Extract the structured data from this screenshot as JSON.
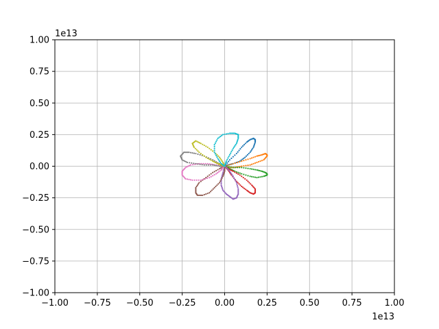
{
  "chart_data": {
    "type": "scatter",
    "title": "",
    "xlabel": "",
    "ylabel": "",
    "xlim": [
      -1.0,
      1.0
    ],
    "ylim": [
      -1.0,
      1.0
    ],
    "x_ticks": [
      "−1.00",
      "−0.75",
      "−0.50",
      "−0.25",
      "0.00",
      "0.25",
      "0.50",
      "0.75",
      "1.00"
    ],
    "y_ticks": [
      "−1.00",
      "−0.75",
      "−0.50",
      "−0.25",
      "0.00",
      "0.25",
      "0.50",
      "0.75",
      "1.00"
    ],
    "x_tick_values": [
      -1.0,
      -0.75,
      -0.5,
      -0.25,
      0.0,
      0.25,
      0.5,
      0.75,
      1.0
    ],
    "y_tick_values": [
      -1.0,
      -0.75,
      -0.5,
      -0.25,
      0.0,
      0.25,
      0.5,
      0.75,
      1.0
    ],
    "x_offset_label": "1e13",
    "y_offset_label": "1e13",
    "grid": true,
    "legend": "none",
    "marker": "dot",
    "series": [
      {
        "color": "#1f77b4",
        "petal_angle_deg": 45,
        "x": [
          0.0,
          0.03,
          0.07,
          0.1,
          0.13,
          0.15,
          0.17,
          0.18,
          0.18,
          0.17,
          0.15,
          0.12,
          0.09,
          0.05,
          0.02,
          0.0
        ],
        "y": [
          0.0,
          0.05,
          0.1,
          0.15,
          0.19,
          0.21,
          0.22,
          0.21,
          0.19,
          0.15,
          0.11,
          0.07,
          0.04,
          0.02,
          0.01,
          0.0
        ]
      },
      {
        "color": "#ff7f0e",
        "petal_angle_deg": 15,
        "x": [
          0.0,
          0.05,
          0.1,
          0.15,
          0.19,
          0.22,
          0.24,
          0.25,
          0.25,
          0.23,
          0.19,
          0.15,
          0.1,
          0.06,
          0.03,
          0.0
        ],
        "y": [
          0.0,
          0.02,
          0.04,
          0.06,
          0.08,
          0.09,
          0.1,
          0.09,
          0.08,
          0.05,
          0.03,
          0.01,
          0.0,
          -0.01,
          -0.01,
          0.0
        ]
      },
      {
        "color": "#2ca02c",
        "petal_angle_deg": -15,
        "x": [
          0.0,
          0.05,
          0.1,
          0.15,
          0.19,
          0.22,
          0.24,
          0.25,
          0.25,
          0.23,
          0.19,
          0.15,
          0.1,
          0.06,
          0.03,
          0.0
        ],
        "y": [
          0.0,
          -0.01,
          -0.01,
          -0.02,
          -0.03,
          -0.04,
          -0.05,
          -0.06,
          -0.07,
          -0.08,
          -0.09,
          -0.08,
          -0.06,
          -0.04,
          -0.02,
          0.0
        ]
      },
      {
        "color": "#d62728",
        "petal_angle_deg": -45,
        "x": [
          0.0,
          0.02,
          0.04,
          0.07,
          0.1,
          0.13,
          0.15,
          0.17,
          0.18,
          0.18,
          0.16,
          0.13,
          0.09,
          0.05,
          0.02,
          0.0
        ],
        "y": [
          0.0,
          -0.03,
          -0.07,
          -0.12,
          -0.16,
          -0.19,
          -0.21,
          -0.22,
          -0.21,
          -0.18,
          -0.15,
          -0.11,
          -0.07,
          -0.04,
          -0.02,
          0.0
        ]
      },
      {
        "color": "#9467bd",
        "petal_angle_deg": -75,
        "x": [
          0.0,
          -0.01,
          -0.02,
          -0.02,
          -0.01,
          0.01,
          0.03,
          0.05,
          0.07,
          0.08,
          0.08,
          0.07,
          0.05,
          0.03,
          0.01,
          0.0
        ],
        "y": [
          0.0,
          -0.05,
          -0.1,
          -0.15,
          -0.19,
          -0.22,
          -0.24,
          -0.26,
          -0.25,
          -0.22,
          -0.18,
          -0.13,
          -0.08,
          -0.04,
          -0.01,
          0.0
        ]
      },
      {
        "color": "#8c564b",
        "petal_angle_deg": -120,
        "x": [
          0.0,
          -0.03,
          -0.07,
          -0.11,
          -0.15,
          -0.17,
          -0.17,
          -0.16,
          -0.13,
          -0.09,
          -0.06,
          -0.03,
          -0.01,
          0.0,
          0.0,
          0.0
        ],
        "y": [
          0.0,
          -0.02,
          -0.05,
          -0.09,
          -0.13,
          -0.17,
          -0.21,
          -0.23,
          -0.23,
          -0.21,
          -0.17,
          -0.13,
          -0.08,
          -0.04,
          -0.01,
          0.0
        ]
      },
      {
        "color": "#e377c2",
        "petal_angle_deg": -170,
        "x": [
          0.0,
          -0.05,
          -0.1,
          -0.15,
          -0.2,
          -0.23,
          -0.25,
          -0.25,
          -0.23,
          -0.19,
          -0.14,
          -0.09,
          -0.05,
          -0.02,
          -0.01,
          0.0
        ],
        "y": [
          0.0,
          0.01,
          0.02,
          0.02,
          0.01,
          -0.01,
          -0.04,
          -0.07,
          -0.1,
          -0.11,
          -0.11,
          -0.09,
          -0.06,
          -0.03,
          -0.01,
          0.0
        ]
      },
      {
        "color": "#7f7f7f",
        "petal_angle_deg": 165,
        "x": [
          0.0,
          -0.03,
          -0.07,
          -0.12,
          -0.17,
          -0.21,
          -0.24,
          -0.26,
          -0.25,
          -0.22,
          -0.17,
          -0.12,
          -0.07,
          -0.03,
          -0.01,
          0.0
        ],
        "y": [
          0.0,
          0.02,
          0.05,
          0.08,
          0.1,
          0.11,
          0.11,
          0.08,
          0.05,
          0.03,
          0.02,
          0.01,
          0.01,
          0.0,
          0.0,
          0.0
        ]
      },
      {
        "color": "#bcbd22",
        "petal_angle_deg": 120,
        "x": [
          0.0,
          -0.01,
          -0.03,
          -0.06,
          -0.1,
          -0.14,
          -0.17,
          -0.19,
          -0.18,
          -0.15,
          -0.11,
          -0.07,
          -0.04,
          -0.02,
          0.0,
          0.0
        ],
        "y": [
          0.0,
          0.03,
          0.07,
          0.11,
          0.15,
          0.18,
          0.2,
          0.18,
          0.15,
          0.11,
          0.07,
          0.04,
          0.02,
          0.01,
          0.0,
          0.0
        ]
      },
      {
        "color": "#17becf",
        "petal_angle_deg": 85,
        "x": [
          0.0,
          0.01,
          0.03,
          0.05,
          0.07,
          0.08,
          0.08,
          0.06,
          0.03,
          -0.01,
          -0.04,
          -0.06,
          -0.06,
          -0.04,
          -0.02,
          0.0
        ],
        "y": [
          0.0,
          0.04,
          0.09,
          0.14,
          0.18,
          0.22,
          0.25,
          0.26,
          0.26,
          0.25,
          0.22,
          0.17,
          0.11,
          0.06,
          0.02,
          0.0
        ]
      }
    ]
  }
}
